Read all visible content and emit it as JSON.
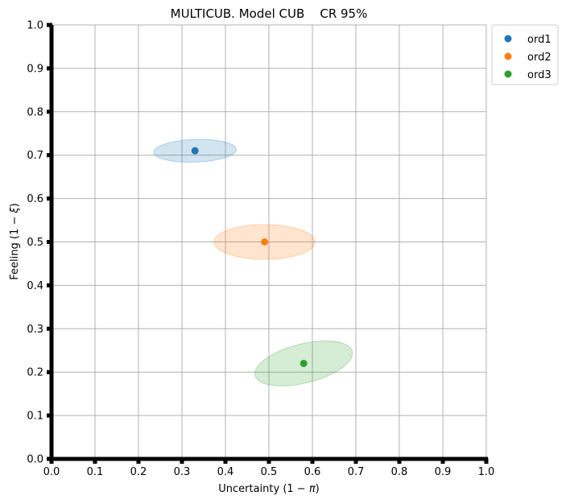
{
  "chart_data": {
    "type": "scatter",
    "title": "MULTICUB. Model CUB    CR 95%",
    "xlabel_prefix": "Uncertainty (1 − ",
    "xlabel_symbol": "π",
    "xlabel_suffix": ")",
    "ylabel_prefix": "Feeling (1 − ",
    "ylabel_symbol": "ξ",
    "ylabel_suffix": ")",
    "xlim": [
      0.0,
      1.0
    ],
    "ylim": [
      0.0,
      1.0
    ],
    "xticks": [
      "0.0",
      "0.1",
      "0.2",
      "0.3",
      "0.4",
      "0.5",
      "0.6",
      "0.7",
      "0.8",
      "0.9",
      "1.0"
    ],
    "yticks": [
      "0.0",
      "0.1",
      "0.2",
      "0.3",
      "0.4",
      "0.5",
      "0.6",
      "0.7",
      "0.8",
      "0.9",
      "1.0"
    ],
    "grid": true,
    "legend_position": "outside-top-right",
    "series": [
      {
        "name": "ord1",
        "color": "#1f77b4",
        "x": 0.33,
        "y": 0.71,
        "region": {
          "half_width": 0.095,
          "half_height": 0.026,
          "tilt_deg": -2
        }
      },
      {
        "name": "ord2",
        "color": "#ff7f0e",
        "x": 0.49,
        "y": 0.5,
        "region": {
          "half_width": 0.116,
          "half_height": 0.04,
          "tilt_deg": 0
        }
      },
      {
        "name": "ord3",
        "color": "#2ca02c",
        "x": 0.58,
        "y": 0.22,
        "region": {
          "half_width": 0.115,
          "half_height": 0.045,
          "tilt_deg": -14
        }
      }
    ]
  }
}
